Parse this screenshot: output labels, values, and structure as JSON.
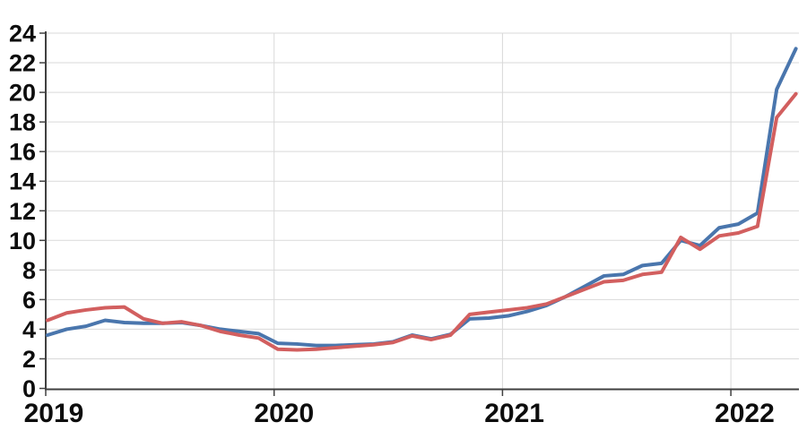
{
  "chart_data": {
    "type": "line",
    "title": "",
    "legend": "none",
    "grid": true,
    "ylim": [
      0,
      24
    ],
    "y_tick_step": 2,
    "y_tick_labels": [
      "0",
      "2",
      "4",
      "6",
      "8",
      "10",
      "12",
      "14",
      "16",
      "18",
      "20",
      "22",
      "24"
    ],
    "x_tick_labels": [
      "2019",
      "2020",
      "2021",
      "2022"
    ],
    "x": [
      "2019-01",
      "2019-02",
      "2019-03",
      "2019-04",
      "2019-05",
      "2019-06",
      "2019-07",
      "2019-08",
      "2019-09",
      "2019-10",
      "2019-11",
      "2019-12",
      "2020-01",
      "2020-02",
      "2020-03",
      "2020-04",
      "2020-05",
      "2020-06",
      "2020-07",
      "2020-08",
      "2020-09",
      "2020-10",
      "2020-11",
      "2020-12",
      "2021-01",
      "2021-02",
      "2021-03",
      "2021-04",
      "2021-05",
      "2021-06",
      "2021-07",
      "2021-08",
      "2021-09",
      "2021-10",
      "2021-11",
      "2021-12",
      "2022-01",
      "2022-02",
      "2022-03",
      "2022-04"
    ],
    "series": [
      {
        "name": "blue-series",
        "color": "#4a76ad",
        "values": [
          3.6,
          4.0,
          4.2,
          4.6,
          4.45,
          4.4,
          4.4,
          4.45,
          4.25,
          4.0,
          3.85,
          3.7,
          3.05,
          3.0,
          2.9,
          2.9,
          2.95,
          3.0,
          3.15,
          3.6,
          3.35,
          3.65,
          4.7,
          4.75,
          4.9,
          5.2,
          5.6,
          6.2,
          6.9,
          7.6,
          7.7,
          8.3,
          8.45,
          10.0,
          9.65,
          10.85,
          11.1,
          11.85,
          20.2,
          22.95
        ]
      },
      {
        "name": "red-series",
        "color": "#d25f5f",
        "values": [
          4.6,
          5.1,
          5.3,
          5.45,
          5.5,
          4.7,
          4.4,
          4.5,
          4.25,
          3.85,
          3.6,
          3.4,
          2.65,
          2.6,
          2.65,
          2.75,
          2.85,
          2.95,
          3.1,
          3.55,
          3.3,
          3.6,
          5.0,
          5.15,
          5.3,
          5.45,
          5.7,
          6.2,
          6.7,
          7.2,
          7.3,
          7.7,
          7.85,
          10.2,
          9.4,
          10.3,
          10.5,
          10.95,
          18.3,
          19.9
        ]
      }
    ],
    "colors": {
      "grid": "#d9d9d9",
      "axis": "#404040",
      "labels": "#0d0d0d",
      "background": "#ffffff"
    }
  }
}
